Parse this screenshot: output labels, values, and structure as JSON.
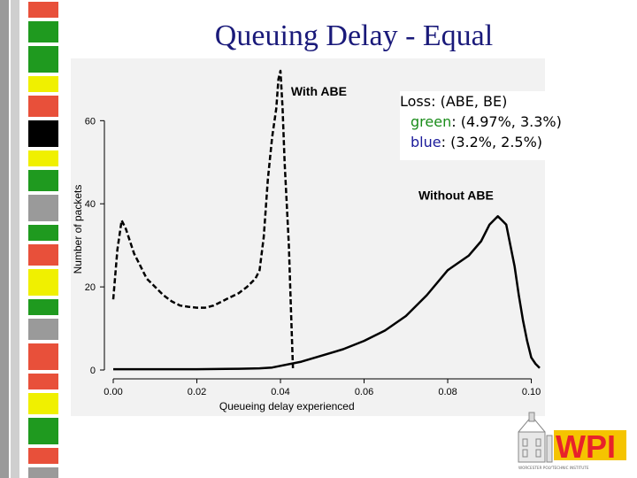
{
  "slide": {
    "title": "Queuing Delay - Equal"
  },
  "loss_box": {
    "heading": "Loss: (ABE, BE)",
    "green_label": "green",
    "green_values": ": (4.97%, 3.3%)",
    "blue_label": "blue",
    "blue_values": ": (3.2%, 2.5%)"
  },
  "logo": {
    "text": "WPI",
    "tagline": "WORCESTER POLYTECHNIC INSTITUTE"
  },
  "colors": {
    "title": "#1a1a7a",
    "green_word": "#1a8c1a",
    "blue_word": "#1a1a9a",
    "strip_colors": [
      "#e8503a",
      "#1f9a1f",
      "#f0f000",
      "#000000",
      "#9a9a9a"
    ],
    "logo_red": "#e8222a",
    "logo_yellow": "#f5c400"
  },
  "chart_data": {
    "type": "line",
    "xlabel": "Queueing delay experienced",
    "ylabel": "Number of packets",
    "xlim": [
      0.0,
      0.102
    ],
    "ylim": [
      0,
      72
    ],
    "xticks": [
      0.0,
      0.02,
      0.04,
      0.06,
      0.08,
      0.1
    ],
    "xtick_labels": [
      "0.00",
      "0.02",
      "0.04",
      "0.06",
      "0.08",
      "0.10"
    ],
    "yticks": [
      0,
      20,
      40,
      60
    ],
    "ytick_labels": [
      "0",
      "20",
      "40",
      "60"
    ],
    "grid": false,
    "annotations": [
      "With ABE",
      "Without ABE"
    ],
    "series": [
      {
        "name": "With ABE",
        "style": "dashed",
        "x": [
          0.0,
          0.001,
          0.002,
          0.003,
          0.004,
          0.005,
          0.006,
          0.007,
          0.008,
          0.01,
          0.012,
          0.014,
          0.016,
          0.018,
          0.02,
          0.022,
          0.024,
          0.026,
          0.028,
          0.03,
          0.032,
          0.034,
          0.035,
          0.036,
          0.037,
          0.038,
          0.039,
          0.0395,
          0.04,
          0.0405,
          0.041,
          0.0415,
          0.042,
          0.0425,
          0.043
        ],
        "y": [
          17,
          29,
          36,
          34,
          31,
          28,
          26,
          24,
          22,
          20,
          18,
          16.5,
          15.5,
          15.2,
          15,
          15,
          15.5,
          16.5,
          17.5,
          18.5,
          20,
          22,
          24,
          32,
          46,
          56,
          63,
          70,
          72,
          63,
          50,
          40,
          30,
          15,
          0
        ]
      },
      {
        "name": "Without ABE",
        "style": "solid",
        "x": [
          0.0,
          0.005,
          0.01,
          0.02,
          0.03,
          0.035,
          0.038,
          0.04,
          0.045,
          0.05,
          0.055,
          0.06,
          0.065,
          0.07,
          0.075,
          0.08,
          0.085,
          0.088,
          0.09,
          0.092,
          0.093,
          0.094,
          0.095,
          0.096,
          0.097,
          0.098,
          0.099,
          0.1,
          0.101,
          0.102
        ],
        "y": [
          0.2,
          0.2,
          0.2,
          0.2,
          0.3,
          0.4,
          0.6,
          1,
          2,
          3.5,
          5,
          7,
          9.5,
          13,
          18,
          24,
          27.5,
          31,
          35,
          37,
          36,
          35,
          30,
          25,
          18,
          12,
          7,
          3,
          1.5,
          0.5
        ]
      }
    ]
  }
}
